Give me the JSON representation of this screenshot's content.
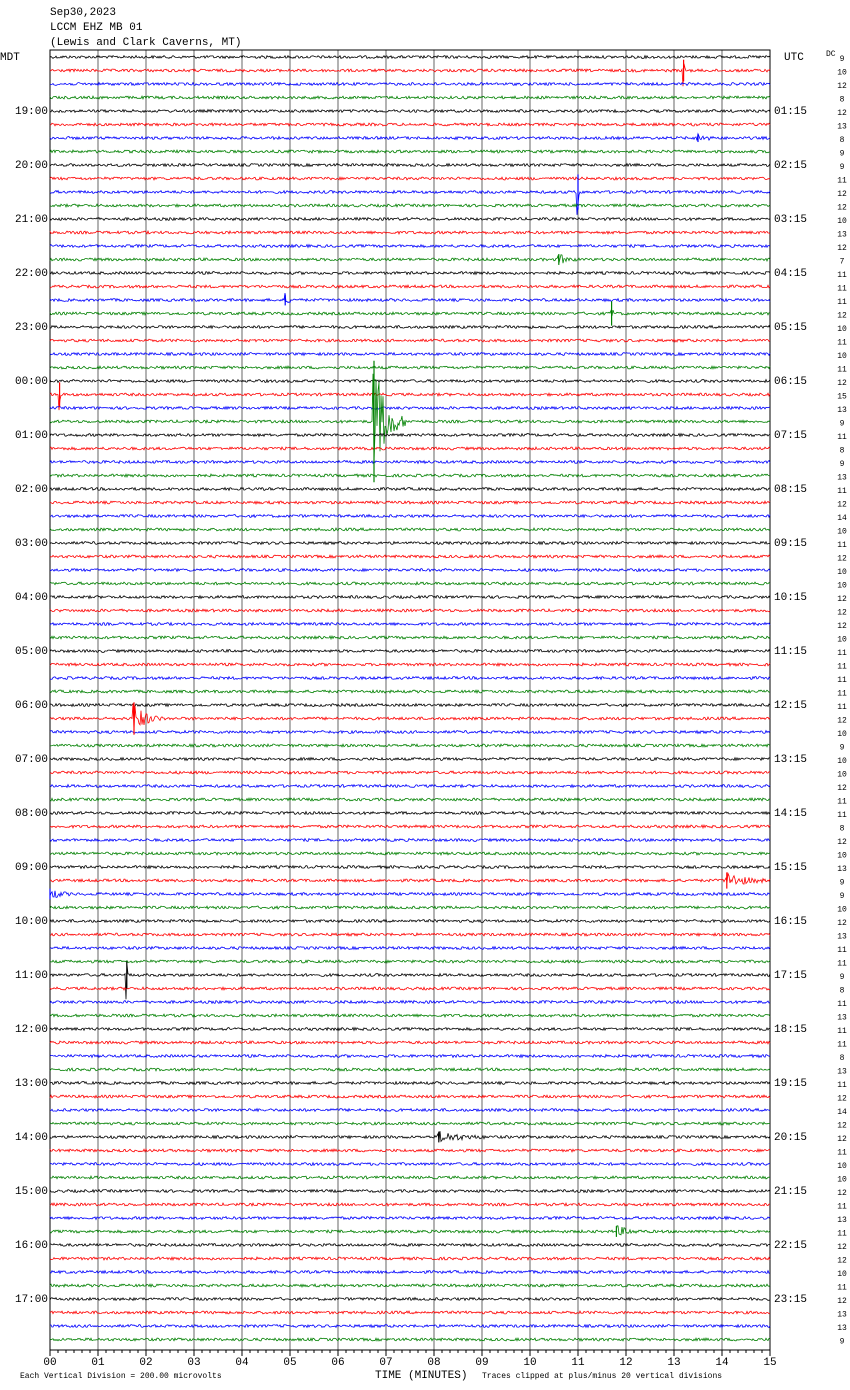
{
  "chart_data": {
    "type": "helicorder",
    "title": [
      "Sep30,2023",
      "LCCM EHZ MB 01",
      "(Lewis and Clark Caverns, MT)"
    ],
    "left_axis_title": "MDT",
    "right_axis_title": "UTC",
    "dc_title": "DC",
    "left_labels": [
      "19:00",
      "20:00",
      "21:00",
      "22:00",
      "23:00",
      "00:00",
      "01:00",
      "02:00",
      "03:00",
      "04:00",
      "05:00",
      "06:00",
      "07:00",
      "08:00",
      "09:00",
      "10:00",
      "11:00",
      "12:00",
      "13:00",
      "14:00",
      "15:00",
      "16:00",
      "17:00"
    ],
    "right_labels": [
      "01:15",
      "02:15",
      "03:15",
      "04:15",
      "05:15",
      "06:15",
      "07:15",
      "08:15",
      "09:15",
      "10:15",
      "11:15",
      "12:15",
      "13:15",
      "14:15",
      "15:15",
      "16:15",
      "17:15",
      "18:15",
      "19:15",
      "20:15",
      "21:15",
      "22:15",
      "23:15"
    ],
    "dc": [
      9,
      10,
      12,
      8,
      12,
      13,
      8,
      9,
      9,
      11,
      12,
      12,
      10,
      13,
      12,
      7,
      11,
      11,
      11,
      12,
      10,
      11,
      10,
      11,
      12,
      15,
      13,
      9,
      11,
      8,
      9,
      13,
      11,
      12,
      14,
      10,
      11,
      12,
      10,
      10,
      12,
      12,
      12,
      10,
      11,
      11,
      11,
      11,
      11,
      12,
      10,
      9,
      10,
      10,
      12,
      11,
      11,
      8,
      12,
      10,
      13,
      9,
      9,
      10,
      12,
      13,
      11,
      11,
      9,
      8,
      11,
      13,
      11,
      11,
      8,
      13,
      11,
      12,
      14,
      12,
      12,
      11,
      10,
      10,
      12,
      11,
      13,
      11,
      12,
      12,
      10,
      11,
      12,
      13,
      13,
      9
    ],
    "colors": [
      "#000000",
      "#ff0000",
      "#0000ff",
      "#008000"
    ],
    "xlim": [
      0,
      15
    ],
    "xticks": [
      {
        "value": 0,
        "label": "00"
      },
      {
        "value": 1,
        "label": "01"
      },
      {
        "value": 2,
        "label": "02"
      },
      {
        "value": 3,
        "label": "03"
      },
      {
        "value": 4,
        "label": "04"
      },
      {
        "value": 5,
        "label": "05"
      },
      {
        "value": 6,
        "label": "06"
      },
      {
        "value": 7,
        "label": "07"
      },
      {
        "value": 8,
        "label": "08"
      },
      {
        "value": 9,
        "label": "09"
      },
      {
        "value": 10,
        "label": "10"
      },
      {
        "value": 11,
        "label": "11"
      },
      {
        "value": 12,
        "label": "12"
      },
      {
        "value": 13,
        "label": "13"
      },
      {
        "value": 14,
        "label": "14"
      },
      {
        "value": 15,
        "label": "15"
      }
    ],
    "xlabel": "TIME (MINUTES)",
    "scale_note": "Each Vertical Division =  200.00 microvolts",
    "clip_note": "Traces clipped at plus/minus 20 vertical divisions",
    "events": [
      {
        "trace": 1,
        "minute": 13.2,
        "amplitude": 0.8,
        "duration": 0.05
      },
      {
        "trace": 6,
        "minute": 13.5,
        "amplitude": 0.3,
        "duration": 0.4
      },
      {
        "trace": 10,
        "minute": 11.0,
        "amplitude": 1.3,
        "duration": 0.05
      },
      {
        "trace": 15,
        "minute": 10.6,
        "amplitude": 0.4,
        "duration": 0.4
      },
      {
        "trace": 18,
        "minute": 4.9,
        "amplitude": 0.4,
        "duration": 0.2
      },
      {
        "trace": 19,
        "minute": 11.7,
        "amplitude": 0.9,
        "duration": 0.05
      },
      {
        "trace": 25,
        "minute": 0.2,
        "amplitude": 0.9,
        "duration": 0.05
      },
      {
        "trace": 27,
        "minute": 6.75,
        "amplitude": 4.5,
        "duration": 0.7
      },
      {
        "trace": 49,
        "minute": 1.75,
        "amplitude": 1.2,
        "duration": 0.6
      },
      {
        "trace": 61,
        "minute": 14.1,
        "amplitude": 0.6,
        "duration": 0.9
      },
      {
        "trace": 62,
        "minute": 0.0,
        "amplitude": 0.4,
        "duration": 0.5
      },
      {
        "trace": 68,
        "minute": 1.6,
        "amplitude": 1.0,
        "duration": 0.05
      },
      {
        "trace": 80,
        "minute": 8.1,
        "amplitude": 0.4,
        "duration": 1.1
      },
      {
        "trace": 87,
        "minute": 11.8,
        "amplitude": 0.4,
        "duration": 0.6
      }
    ]
  }
}
